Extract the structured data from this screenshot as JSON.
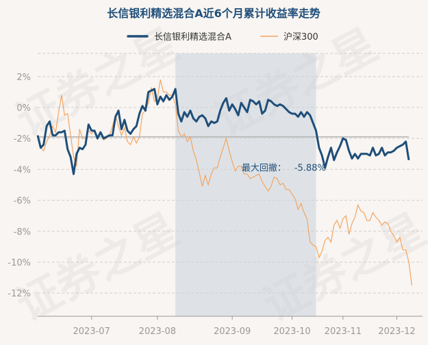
{
  "chart_data": {
    "type": "line",
    "title": "长信银利精选混合A近6个月累计收益率走势",
    "watermark": "证券之星",
    "ylim": [
      -13.5,
      3.5
    ],
    "yticks": [
      2,
      0,
      -2,
      -4,
      -6,
      -8,
      -10,
      -12
    ],
    "ytick_labels": [
      "2%",
      "0%",
      "-2%",
      "-4%",
      "-6%",
      "-8%",
      "-10%",
      "-12%"
    ],
    "xtick_labels": [
      "2023-07",
      "2023-08",
      "2023-09",
      "2023-10",
      "2023-11",
      "2023-12"
    ],
    "x_count": 125,
    "xtick_index": [
      18,
      40,
      65,
      85,
      102,
      120
    ],
    "grid": true,
    "legend_position": "top",
    "shade_range": [
      46,
      93
    ],
    "reference_line": -1.9,
    "colors": {
      "fund": "#1f4e79",
      "index": "#f4a460",
      "shade": "#c8d2dc",
      "ref": "#b0b0b0"
    },
    "annotation": {
      "label": "最大回撤：",
      "value": "-5.88%",
      "x": 75,
      "y": -4.1
    },
    "series": [
      {
        "name": "长信银利精选混合A",
        "values": [
          -1.8,
          -2.6,
          -2.4,
          -1.2,
          -0.9,
          -1.8,
          -1.8,
          -1.6,
          -1.6,
          -1.5,
          -2.7,
          -3.2,
          -4.3,
          -3.0,
          -2.6,
          -2.7,
          -2.4,
          -1.1,
          -1.5,
          -1.5,
          -2.0,
          -1.6,
          -2.0,
          -1.9,
          -1.8,
          -1.8,
          -0.6,
          -0.2,
          -1.4,
          -0.8,
          -1.5,
          -1.7,
          -1.4,
          -1.2,
          -0.4,
          0.1,
          -0.2,
          1.0,
          1.1,
          1.2,
          0.2,
          0.7,
          0.4,
          0.8,
          0.5,
          0.7,
          1.2,
          -0.4,
          -0.9,
          -0.3,
          -0.6,
          -0.2,
          -0.7,
          -0.9,
          -0.6,
          -0.5,
          -0.7,
          -1.2,
          -0.9,
          -1.0,
          -0.9,
          -0.2,
          0.3,
          0.6,
          -0.2,
          0.2,
          -0.1,
          -0.5,
          0.3,
          0.0,
          -0.3,
          0.5,
          0.4,
          0.2,
          0.4,
          -0.4,
          -0.2,
          0.5,
          0.4,
          0.2,
          0.1,
          0.2,
          0.1,
          -0.1,
          -0.3,
          -0.4,
          -0.4,
          -0.6,
          -0.3,
          -0.6,
          -0.3,
          -0.5,
          -1.0,
          -1.5,
          -2.6,
          -3.1,
          -3.9,
          -3.2,
          -2.6,
          -3.4,
          -2.9,
          -2.5,
          -2.0,
          -2.1,
          -2.8,
          -3.3,
          -3.0,
          -3.3,
          -3.0,
          -3.0,
          -3.0,
          -3.1,
          -2.6,
          -3.1,
          -3.0,
          -2.6,
          -3.1,
          -2.9,
          -2.9,
          -2.8,
          -2.6,
          -2.5,
          -2.4,
          -2.2,
          -3.4
        ]
      },
      {
        "name": "沪深300",
        "values": [
          -2.0,
          -2.6,
          -2.8,
          -2.2,
          -1.8,
          -1.2,
          -1.6,
          -0.3,
          0.8,
          -0.5,
          -0.4,
          -1.8,
          -3.2,
          -3.8,
          -1.4,
          -2.0,
          -2.0,
          -1.5,
          -1.7,
          -1.5,
          -1.9,
          -1.6,
          -2.1,
          -2.0,
          -1.8,
          -1.2,
          -0.5,
          -1.2,
          -1.8,
          -1.3,
          -2.2,
          -2.4,
          -1.9,
          -2.3,
          -1.9,
          -0.4,
          -0.2,
          0.3,
          1.3,
          0.4,
          0.6,
          1.8,
          1.0,
          1.0,
          0.8,
          0.8,
          0.2,
          -1.5,
          -1.9,
          -1.7,
          -2.2,
          -1.9,
          -2.8,
          -3.4,
          -4.2,
          -5.1,
          -4.4,
          -5.0,
          -4.3,
          -3.9,
          -3.9,
          -3.2,
          -2.6,
          -2.0,
          -2.8,
          -3.5,
          -4.1,
          -3.8,
          -3.8,
          -4.3,
          -4.3,
          -4.6,
          -4.5,
          -4.4,
          -4.3,
          -4.8,
          -5.1,
          -5.4,
          -5.1,
          -4.5,
          -4.6,
          -5.0,
          -4.9,
          -5.3,
          -5.3,
          -5.6,
          -5.9,
          -6.6,
          -6.2,
          -6.8,
          -7.2,
          -8.7,
          -8.9,
          -9.0,
          -9.7,
          -9.3,
          -8.6,
          -8.4,
          -8.7,
          -7.6,
          -7.3,
          -7.8,
          -7.2,
          -7.0,
          -8.2,
          -7.5,
          -7.1,
          -6.3,
          -6.7,
          -6.8,
          -7.3,
          -7.3,
          -6.8,
          -7.1,
          -7.3,
          -7.6,
          -7.4,
          -7.5,
          -8.0,
          -8.3,
          -8.7,
          -8.4,
          -9.2,
          -9.2,
          -10.0,
          -11.5
        ]
      }
    ]
  }
}
